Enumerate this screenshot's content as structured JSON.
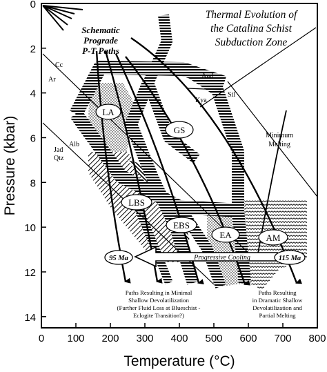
{
  "title": {
    "line1": "Thermal Evolution of",
    "line2": "the Catalina Schist",
    "line3": "Subduction Zone"
  },
  "paths_label": {
    "line1": "Schematic",
    "line2": "Prograde",
    "line3": "P-T Paths"
  },
  "axes": {
    "x_label": "Temperature (°C)",
    "y_label": "Pressure (kbar)",
    "x_ticks": [
      "0",
      "100",
      "200",
      "300",
      "400",
      "500",
      "600",
      "700",
      "800"
    ],
    "y_ticks": [
      "0",
      "2",
      "4",
      "6",
      "8",
      "10",
      "12",
      "14"
    ],
    "x_range": [
      0,
      800
    ],
    "y_range": [
      0,
      14.5
    ]
  },
  "reaction_labels": {
    "cc": "Cc",
    "ar": "Ar",
    "and": "And",
    "sil": "Sil",
    "kya": "Kya",
    "jad_qtz_1": "Jad",
    "jad_qtz_2": "Qtz",
    "alb": "Alb",
    "min_melt_1": "Minimum",
    "min_melt_2": "Melting"
  },
  "facies": {
    "la": "LA",
    "gs": "GS",
    "lbs": "LBS",
    "ebs": "EBS",
    "ea": "EA",
    "am": "AM"
  },
  "ages": {
    "left": "95 Ma",
    "right": "115 Ma"
  },
  "cooling_label": "Progressive Cooling",
  "notes": {
    "left": [
      "Paths Resulting in Minimal",
      "Shallow Devolatilization",
      "(Further Fluid Loss at Blueschist -",
      "Eclogite Transition?)"
    ],
    "right": [
      "Paths Resulting",
      "in Dramatic Shallow",
      "Devolatilization and",
      "Partial Melting"
    ]
  },
  "colors": {
    "ink": "#000000",
    "paper": "#ffffff"
  }
}
